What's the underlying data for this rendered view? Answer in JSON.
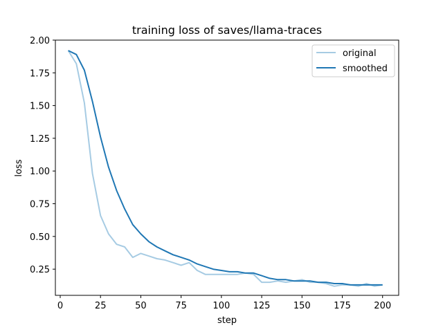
{
  "chart_data": {
    "type": "line",
    "title": "training loss of saves/llama-traces",
    "xlabel": "step",
    "ylabel": "loss",
    "xlim": [
      -3,
      210
    ],
    "ylim": [
      0.05,
      2.0
    ],
    "xticks": [
      0,
      25,
      50,
      75,
      100,
      125,
      150,
      175,
      200
    ],
    "yticks": [
      0.25,
      0.5,
      0.75,
      1.0,
      1.25,
      1.5,
      1.75,
      2.0
    ],
    "ytick_labels": [
      "0.25",
      "0.50",
      "0.75",
      "1.00",
      "1.25",
      "1.50",
      "1.75",
      "2.00"
    ],
    "grid": false,
    "legend_position": "top-right",
    "x": [
      5,
      10,
      15,
      20,
      25,
      30,
      35,
      40,
      45,
      50,
      55,
      60,
      65,
      70,
      75,
      80,
      85,
      90,
      95,
      100,
      105,
      110,
      115,
      120,
      125,
      130,
      135,
      140,
      145,
      150,
      155,
      160,
      165,
      170,
      175,
      180,
      185,
      190,
      195,
      200
    ],
    "series": [
      {
        "name": "original",
        "color": "#a6cbe3",
        "values": [
          1.92,
          1.82,
          1.52,
          0.98,
          0.66,
          0.52,
          0.44,
          0.42,
          0.34,
          0.37,
          0.35,
          0.33,
          0.32,
          0.3,
          0.28,
          0.3,
          0.24,
          0.21,
          0.21,
          0.21,
          0.21,
          0.21,
          0.22,
          0.21,
          0.15,
          0.15,
          0.16,
          0.15,
          0.16,
          0.17,
          0.15,
          0.15,
          0.14,
          0.12,
          0.13,
          0.13,
          0.12,
          0.14,
          0.12,
          0.13
        ]
      },
      {
        "name": "smoothed",
        "color": "#1f77b4",
        "values": [
          1.92,
          1.89,
          1.77,
          1.53,
          1.26,
          1.03,
          0.85,
          0.71,
          0.59,
          0.52,
          0.46,
          0.42,
          0.39,
          0.36,
          0.34,
          0.32,
          0.29,
          0.27,
          0.25,
          0.24,
          0.23,
          0.23,
          0.22,
          0.22,
          0.2,
          0.18,
          0.17,
          0.17,
          0.16,
          0.16,
          0.16,
          0.15,
          0.15,
          0.14,
          0.14,
          0.13,
          0.13,
          0.13,
          0.13,
          0.13
        ]
      }
    ]
  }
}
